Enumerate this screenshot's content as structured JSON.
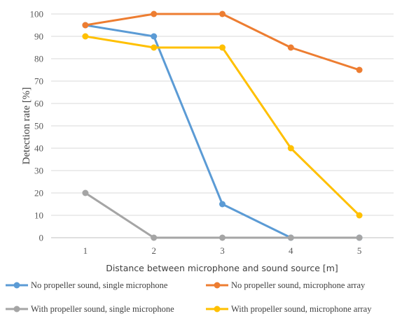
{
  "chart_data": {
    "type": "line",
    "title": "",
    "xlabel": "Distance between microphone and sound source [m]",
    "ylabel": "Detection rate [%]",
    "x": [
      1,
      2,
      3,
      4,
      5
    ],
    "y_ticks": [
      0,
      10,
      20,
      30,
      40,
      50,
      60,
      70,
      80,
      90,
      100
    ],
    "ylim": [
      0,
      100
    ],
    "grid": true,
    "legend_position": "bottom",
    "series": [
      {
        "name": "No propeller sound, single microphone",
        "color": "#5B9BD5",
        "values": [
          95,
          90,
          15,
          0,
          0
        ]
      },
      {
        "name": "No propeller sound, microphone array",
        "color": "#ED7D31",
        "values": [
          95,
          100,
          100,
          85,
          75
        ]
      },
      {
        "name": "With propeller sound, single microphone",
        "color": "#A5A5A5",
        "values": [
          20,
          0,
          0,
          0,
          0
        ]
      },
      {
        "name": "With propeller sound, microphone array",
        "color": "#FFC000",
        "values": [
          90,
          85,
          85,
          40,
          10
        ]
      }
    ]
  }
}
